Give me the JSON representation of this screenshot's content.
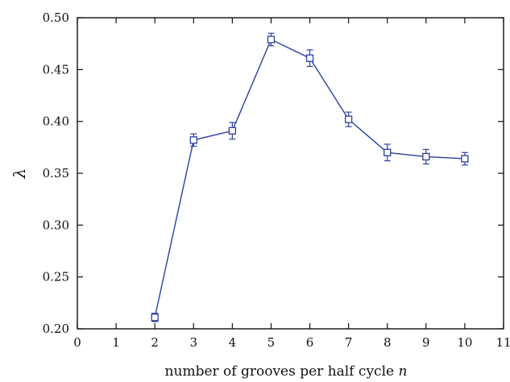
{
  "chart_data": {
    "type": "line",
    "title": "",
    "xlabel": "number of grooves per half cycle",
    "xlabel_var": "n",
    "ylabel": "λ",
    "xlim": [
      0,
      11
    ],
    "ylim": [
      0.2,
      0.5
    ],
    "xticks": [
      0,
      1,
      2,
      3,
      4,
      5,
      6,
      7,
      8,
      9,
      10,
      11
    ],
    "yticks": [
      0.2,
      0.25,
      0.3,
      0.35,
      0.4,
      0.45,
      0.5
    ],
    "yticks_labels": [
      "0.20",
      "0.25",
      "0.30",
      "0.35",
      "0.40",
      "0.45",
      "0.50"
    ],
    "grid": false,
    "marker": "square",
    "color": "#2b3fa0",
    "series": [
      {
        "x": [
          2,
          3,
          4,
          5,
          6,
          7,
          8,
          9,
          10
        ],
        "y": [
          0.211,
          0.382,
          0.391,
          0.479,
          0.461,
          0.402,
          0.37,
          0.366,
          0.364
        ],
        "yerr": [
          0.004,
          0.006,
          0.008,
          0.006,
          0.008,
          0.007,
          0.008,
          0.007,
          0.006
        ]
      }
    ]
  }
}
